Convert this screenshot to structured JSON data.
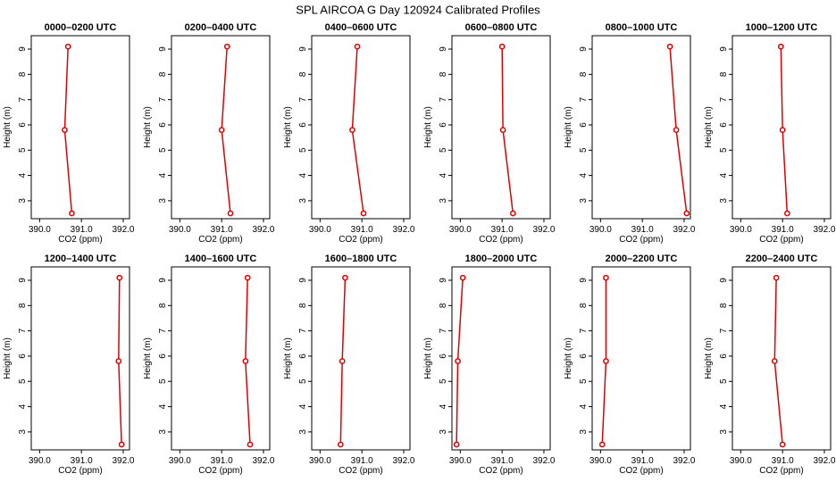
{
  "title": "SPL AIRCOA G  Day 120924  Calibrated Profiles",
  "chart_data": [
    {
      "type": "line",
      "title": "0000–0200 UTC",
      "x_label": "CO2 (ppm)",
      "y_label": "Height (m)",
      "x": [
        390.68,
        390.6,
        390.77
      ],
      "values": [
        9.1,
        5.8,
        2.5
      ],
      "color": "#e00000",
      "xlim": [
        389.8,
        392.15
      ],
      "ylim": [
        2.29,
        9.53
      ],
      "xticks": [
        {
          "value": 390,
          "label": "390.0"
        },
        {
          "value": 391,
          "label": "391.0"
        },
        {
          "value": 392,
          "label": "392.0"
        }
      ],
      "yticks": [
        3,
        4,
        5,
        6,
        7,
        8,
        9
      ]
    },
    {
      "type": "line",
      "title": "0200–0400 UTC",
      "x_label": "CO2 (ppm)",
      "y_label": "Height (m)",
      "x": [
        391.13,
        391.0,
        391.21
      ],
      "values": [
        9.1,
        5.8,
        2.5
      ],
      "color": "#e00000",
      "xlim": [
        389.8,
        392.15
      ],
      "ylim": [
        2.29,
        9.53
      ],
      "xticks": [
        {
          "value": 390,
          "label": "390.0"
        },
        {
          "value": 391,
          "label": "391.0"
        },
        {
          "value": 392,
          "label": "392.0"
        }
      ],
      "yticks": [
        3,
        4,
        5,
        6,
        7,
        8,
        9
      ]
    },
    {
      "type": "line",
      "title": "0400–0600 UTC",
      "x_label": "CO2 (ppm)",
      "y_label": "Height (m)",
      "x": [
        390.89,
        390.77,
        391.04
      ],
      "values": [
        9.1,
        5.8,
        2.5
      ],
      "color": "#e00000",
      "xlim": [
        389.8,
        392.15
      ],
      "ylim": [
        2.29,
        9.53
      ],
      "xticks": [
        {
          "value": 390,
          "label": "390.0"
        },
        {
          "value": 391,
          "label": "391.0"
        },
        {
          "value": 392,
          "label": "392.0"
        }
      ],
      "yticks": [
        3,
        4,
        5,
        6,
        7,
        8,
        9
      ]
    },
    {
      "type": "line",
      "title": "0600–0800 UTC",
      "x_label": "CO2 (ppm)",
      "y_label": "Height (m)",
      "x": [
        391.0,
        391.02,
        391.26
      ],
      "values": [
        9.1,
        5.8,
        2.5
      ],
      "color": "#e00000",
      "xlim": [
        389.8,
        392.15
      ],
      "ylim": [
        2.29,
        9.53
      ],
      "xticks": [
        {
          "value": 390,
          "label": "390.0"
        },
        {
          "value": 391,
          "label": "391.0"
        },
        {
          "value": 392,
          "label": "392.0"
        }
      ],
      "yticks": [
        3,
        4,
        5,
        6,
        7,
        8,
        9
      ]
    },
    {
      "type": "line",
      "title": "0800–1000 UTC",
      "x_label": "CO2 (ppm)",
      "y_label": "Height (m)",
      "x": [
        391.66,
        391.81,
        392.06
      ],
      "values": [
        9.1,
        5.8,
        2.5
      ],
      "color": "#e00000",
      "xlim": [
        389.8,
        392.15
      ],
      "ylim": [
        2.29,
        9.53
      ],
      "xticks": [
        {
          "value": 390,
          "label": "390.0"
        },
        {
          "value": 391,
          "label": "391.0"
        },
        {
          "value": 392,
          "label": "392.0"
        }
      ],
      "yticks": [
        3,
        4,
        5,
        6,
        7,
        8,
        9
      ]
    },
    {
      "type": "line",
      "title": "1000–1200 UTC",
      "x_label": "CO2 (ppm)",
      "y_label": "Height (m)",
      "x": [
        390.96,
        391.0,
        391.11
      ],
      "values": [
        9.1,
        5.8,
        2.5
      ],
      "color": "#e00000",
      "xlim": [
        389.8,
        392.15
      ],
      "ylim": [
        2.29,
        9.53
      ],
      "xticks": [
        {
          "value": 390,
          "label": "390.0"
        },
        {
          "value": 391,
          "label": "391.0"
        },
        {
          "value": 392,
          "label": "392.0"
        }
      ],
      "yticks": [
        3,
        4,
        5,
        6,
        7,
        8,
        9
      ]
    },
    {
      "type": "line",
      "title": "1200–1400 UTC",
      "x_label": "CO2 (ppm)",
      "y_label": "Height (m)",
      "x": [
        391.91,
        391.89,
        391.96
      ],
      "values": [
        9.1,
        5.8,
        2.5
      ],
      "color": "#e00000",
      "xlim": [
        389.8,
        392.15
      ],
      "ylim": [
        2.29,
        9.53
      ],
      "xticks": [
        {
          "value": 390,
          "label": "390.0"
        },
        {
          "value": 391,
          "label": "391.0"
        },
        {
          "value": 392,
          "label": "392.0"
        }
      ],
      "yticks": [
        3,
        4,
        5,
        6,
        7,
        8,
        9
      ]
    },
    {
      "type": "line",
      "title": "1400–1600 UTC",
      "x_label": "CO2 (ppm)",
      "y_label": "Height (m)",
      "x": [
        391.62,
        391.57,
        391.68
      ],
      "values": [
        9.1,
        5.8,
        2.5
      ],
      "color": "#e00000",
      "xlim": [
        389.8,
        392.15
      ],
      "ylim": [
        2.29,
        9.53
      ],
      "xticks": [
        {
          "value": 390,
          "label": "390.0"
        },
        {
          "value": 391,
          "label": "391.0"
        },
        {
          "value": 392,
          "label": "392.0"
        }
      ],
      "yticks": [
        3,
        4,
        5,
        6,
        7,
        8,
        9
      ]
    },
    {
      "type": "line",
      "title": "1600–1800 UTC",
      "x_label": "CO2 (ppm)",
      "y_label": "Height (m)",
      "x": [
        390.6,
        390.53,
        390.49
      ],
      "values": [
        9.1,
        5.8,
        2.5
      ],
      "color": "#e00000",
      "xlim": [
        389.8,
        392.15
      ],
      "ylim": [
        2.29,
        9.53
      ],
      "xticks": [
        {
          "value": 390,
          "label": "390.0"
        },
        {
          "value": 391,
          "label": "391.0"
        },
        {
          "value": 392,
          "label": "392.0"
        }
      ],
      "yticks": [
        3,
        4,
        5,
        6,
        7,
        8,
        9
      ]
    },
    {
      "type": "line",
      "title": "1800–2000 UTC",
      "x_label": "CO2 (ppm)",
      "y_label": "Height (m)",
      "x": [
        390.06,
        389.94,
        389.91
      ],
      "values": [
        9.1,
        5.8,
        2.5
      ],
      "color": "#e00000",
      "xlim": [
        389.8,
        392.15
      ],
      "ylim": [
        2.29,
        9.53
      ],
      "xticks": [
        {
          "value": 390,
          "label": "390.0"
        },
        {
          "value": 391,
          "label": "391.0"
        },
        {
          "value": 392,
          "label": "392.0"
        }
      ],
      "yticks": [
        3,
        4,
        5,
        6,
        7,
        8,
        9
      ]
    },
    {
      "type": "line",
      "title": "2000–2200 UTC",
      "x_label": "CO2 (ppm)",
      "y_label": "Height (m)",
      "x": [
        390.13,
        390.13,
        390.04
      ],
      "values": [
        9.1,
        5.8,
        2.5
      ],
      "color": "#e00000",
      "xlim": [
        389.8,
        392.15
      ],
      "ylim": [
        2.29,
        9.53
      ],
      "xticks": [
        {
          "value": 390,
          "label": "390.0"
        },
        {
          "value": 391,
          "label": "391.0"
        },
        {
          "value": 392,
          "label": "392.0"
        }
      ],
      "yticks": [
        3,
        4,
        5,
        6,
        7,
        8,
        9
      ]
    },
    {
      "type": "line",
      "title": "2200–2400 UTC",
      "x_label": "CO2 (ppm)",
      "y_label": "Height (m)",
      "x": [
        390.85,
        390.81,
        391.0
      ],
      "values": [
        9.1,
        5.8,
        2.5
      ],
      "color": "#e00000",
      "xlim": [
        389.8,
        392.15
      ],
      "ylim": [
        2.29,
        9.53
      ],
      "xticks": [
        {
          "value": 390,
          "label": "390.0"
        },
        {
          "value": 391,
          "label": "391.0"
        },
        {
          "value": 392,
          "label": "392.0"
        }
      ],
      "yticks": [
        3,
        4,
        5,
        6,
        7,
        8,
        9
      ]
    }
  ]
}
